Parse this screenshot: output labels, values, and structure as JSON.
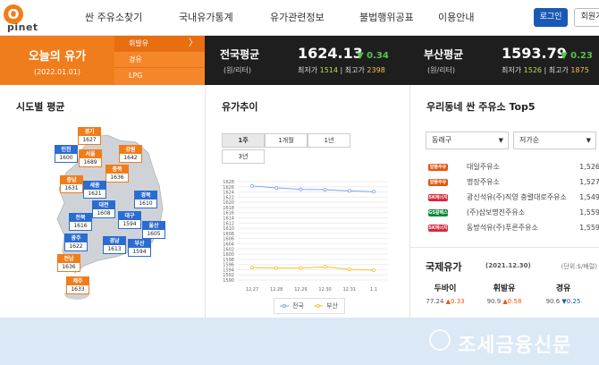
{
  "brand": {
    "logo_letter": "O",
    "logo_word": "pinet"
  },
  "nav": {
    "items": [
      "싼 주유소찾기",
      "국내유가통계",
      "유가관련정보",
      "불법행위공표",
      "이용안내"
    ],
    "login": "로그인",
    "join": "회원가"
  },
  "today": {
    "title": "오늘의 유가",
    "date": "(2022.01.01)"
  },
  "fuel_tabs": [
    "휘발유",
    "경유",
    "LPG"
  ],
  "fuel_arrow": "〉",
  "national": {
    "name": "전국평균",
    "unit": "(원/리터)",
    "price": "1624.13",
    "change": "▼ 0.34",
    "min_label": "최저가",
    "min": "1514",
    "max_label": "최고가",
    "max": "2398"
  },
  "busan": {
    "name": "부산평균",
    "unit": "(원/리터)",
    "price": "1593.79",
    "change": "▼ 0.23",
    "min_label": "최저가",
    "min": "1526",
    "max_label": "최고가",
    "max": "1875"
  },
  "regional": {
    "title": "시도별 평균",
    "regions": [
      {
        "name": "경기",
        "price": "1627"
      },
      {
        "name": "인천",
        "price": "1600"
      },
      {
        "name": "서울",
        "price": "1689"
      },
      {
        "name": "강원",
        "price": "1642"
      },
      {
        "name": "충북",
        "price": "1636"
      },
      {
        "name": "충남",
        "price": "1631"
      },
      {
        "name": "세종",
        "price": "1621"
      },
      {
        "name": "대전",
        "price": "1608"
      },
      {
        "name": "경북",
        "price": "1610"
      },
      {
        "name": "전북",
        "price": "1616"
      },
      {
        "name": "대구",
        "price": "1594"
      },
      {
        "name": "울산",
        "price": "1605"
      },
      {
        "name": "광주",
        "price": "1622"
      },
      {
        "name": "경남",
        "price": "1613"
      },
      {
        "name": "부산",
        "price": "1594"
      },
      {
        "name": "전남",
        "price": "1636"
      },
      {
        "name": "제주",
        "price": "1633"
      }
    ]
  },
  "trend": {
    "title": "유가추이",
    "tabs": [
      "1주",
      "1개월",
      "1년",
      "3년"
    ],
    "legend": [
      "전국",
      "부산"
    ]
  },
  "chart_data": {
    "type": "line",
    "x": [
      "12.27",
      "12.28",
      "12.29",
      "12.30",
      "12.31",
      "1.1"
    ],
    "series": [
      {
        "name": "전국",
        "values": [
          1626.3,
          1625.6,
          1625.0,
          1624.9,
          1624.4,
          1624.1
        ],
        "color": "#7fa8ef"
      },
      {
        "name": "부산",
        "values": [
          1594.8,
          1594.6,
          1594.6,
          1595.1,
          1594.1,
          1593.8
        ],
        "color": "#f2c230"
      }
    ],
    "y_ticks": [
      1590,
      1592,
      1594,
      1596,
      1598,
      1600,
      1602,
      1604,
      1606,
      1608,
      1610,
      1612,
      1614,
      1616,
      1618,
      1620,
      1622,
      1624,
      1626,
      1628
    ],
    "ylim": [
      1590,
      1628
    ],
    "grid": true,
    "legend_position": "bottom"
  },
  "top5": {
    "title": "우리동네 싼 주유소 Top5",
    "district": "동래구",
    "sort": "저가순",
    "stations": [
      {
        "brand": "알뜰주유소",
        "brand_color": "#e8540e",
        "name": "대일주유소",
        "price": "1,526"
      },
      {
        "brand": "알뜰주유소",
        "brand_color": "#e8540e",
        "name": "명장주유소",
        "price": "1,527"
      },
      {
        "brand": "SK에너지",
        "brand_color": "#d7263d",
        "name": "광신석유(주)직영 충렬대로주유소",
        "price": "1,549"
      },
      {
        "brand": "GS칼텍스",
        "brand_color": "#0a8a3a",
        "name": "(주)삼보명진주유소",
        "price": "1,559"
      },
      {
        "brand": "SK에너지",
        "brand_color": "#d7263d",
        "name": "동방석유(주)푸른주유소",
        "price": "1,559"
      }
    ]
  },
  "intl": {
    "title": "국제유가",
    "date": "(2021.12.30)",
    "unit": "(단위:$/배럴)",
    "items": [
      {
        "name": "두바이",
        "value": "77.24",
        "change": "▲0.33",
        "dir": "up"
      },
      {
        "name": "휘발유",
        "value": "90.9",
        "change": "▲0.58",
        "dir": "up"
      },
      {
        "name": "경유",
        "value": "90.6",
        "change": "▼0.25",
        "dir": "dn"
      }
    ]
  },
  "watermark": "조세금융신문"
}
